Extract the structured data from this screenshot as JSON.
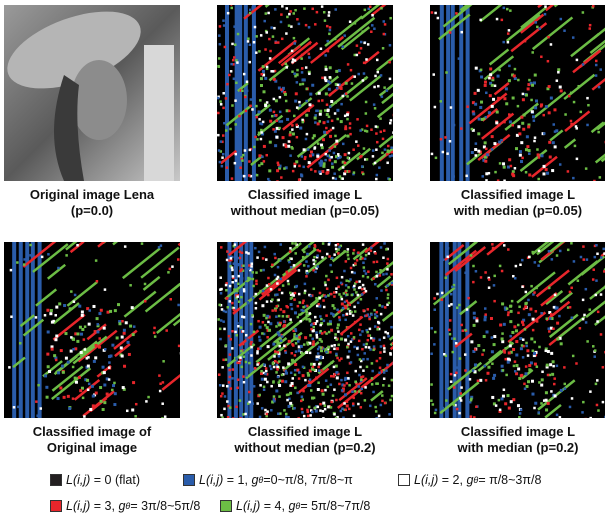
{
  "panels": [
    {
      "caption": [
        "Original image Lena",
        "(p=0.0)"
      ]
    },
    {
      "caption": [
        "Classified image L",
        "without median (p=0.05)"
      ]
    },
    {
      "caption": [
        "Classified image L",
        "with median (p=0.05)"
      ]
    },
    {
      "caption": [
        "Classified image of",
        "Original image"
      ]
    },
    {
      "caption": [
        "Classified image L",
        "without median (p=0.2)"
      ]
    },
    {
      "caption": [
        "Classified image L",
        "with median (p=0.2)"
      ]
    }
  ],
  "legend": [
    {
      "color": "#231f20",
      "lhs": "L(i,j)",
      "text": " = 0 (flat)"
    },
    {
      "color": "#2a5caa",
      "lhs": "L(i,j)",
      "text": " = 1, ",
      "g": "g",
      "sub": "θ",
      "rest": "=0~π/8, 7π/8~π"
    },
    {
      "color": "#ffffff",
      "lhs": "L(i,j)",
      "text": " = 2, ",
      "g": "g",
      "sub": "θ",
      "rest": "= π/8~3π/8"
    },
    {
      "color": "#e8262b",
      "lhs": "L(i,j)",
      "text": " = 3, ",
      "g": "g",
      "sub": "θ",
      "rest": "= 3π/8~5π/8"
    },
    {
      "color": "#6cbd45",
      "lhs": "L(i,j)",
      "text": " = 4, ",
      "g": "g",
      "sub": "θ",
      "rest": "= 5π/8~7π/8"
    }
  ]
}
